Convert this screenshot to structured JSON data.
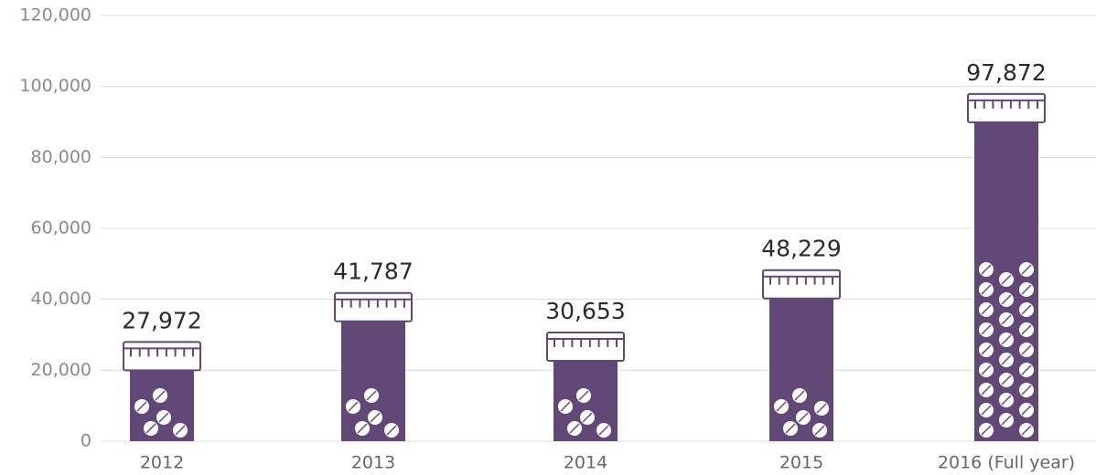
{
  "chart_data": {
    "type": "bar",
    "categories": [
      "2012",
      "2013",
      "2014",
      "2015",
      "2016 (Full year)"
    ],
    "values": [
      27972,
      41787,
      30653,
      48229,
      97872
    ],
    "value_labels": [
      "27,972",
      "41,787",
      "30,653",
      "48,229",
      "97,872"
    ],
    "color": "#614877",
    "ylim": [
      0,
      120000
    ],
    "yticks": [
      0,
      {
        "value": 20000,
        "label": "20,000"
      },
      {
        "value": 40000,
        "label": "40,000"
      },
      {
        "value": 60000,
        "label": "60,000"
      },
      {
        "value": 80000,
        "label": "80,000"
      },
      {
        "value": 100000,
        "label": "100,000"
      },
      {
        "value": 120000,
        "label": "120,000"
      }
    ],
    "grid": true
  }
}
